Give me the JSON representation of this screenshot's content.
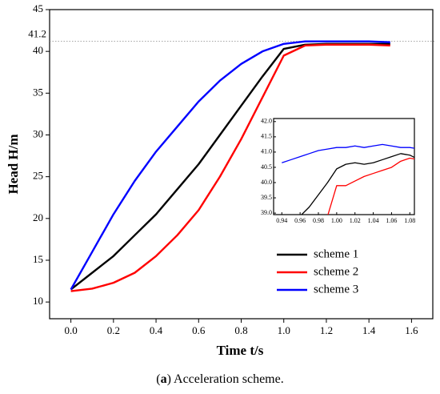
{
  "chart_data": [
    {
      "type": "line",
      "xlabel": "Time t/s",
      "ylabel": "Head H/m",
      "x": [
        0,
        0.1,
        0.2,
        0.3,
        0.4,
        0.5,
        0.6,
        0.7,
        0.8,
        0.9,
        1.0,
        1.1,
        1.2,
        1.3,
        1.4,
        1.5
      ],
      "series": [
        {
          "name": "scheme 1",
          "color": "#000000",
          "values": [
            11.5,
            13.5,
            15.5,
            18,
            20.5,
            23.5,
            26.5,
            30,
            33.5,
            37,
            40.3,
            40.8,
            40.9,
            40.9,
            40.9,
            40.9
          ]
        },
        {
          "name": "scheme 2",
          "color": "#ff0000",
          "values": [
            11.3,
            11.6,
            12.3,
            13.5,
            15.5,
            18,
            21,
            25,
            29.5,
            34.5,
            39.5,
            40.7,
            40.8,
            40.8,
            40.8,
            40.7
          ]
        },
        {
          "name": "scheme 3",
          "color": "#0000ff",
          "values": [
            11.5,
            16,
            20.5,
            24.5,
            28,
            31,
            34,
            36.5,
            38.5,
            40,
            40.9,
            41.2,
            41.2,
            41.2,
            41.2,
            41.1
          ]
        }
      ],
      "xlim": [
        -0.1,
        1.7
      ],
      "xticks": [
        {
          "value": 0,
          "label": "0.0"
        },
        0.2,
        0.4,
        0.6,
        0.8,
        {
          "value": 1,
          "label": "1.0"
        },
        1.2,
        1.4,
        1.6
      ],
      "ylim": [
        8,
        45
      ],
      "yticks": [
        10,
        15,
        20,
        25,
        30,
        35,
        40,
        45
      ],
      "reference_line": {
        "value": 41.2,
        "label": "41.2"
      },
      "legend": "lower right"
    },
    {
      "type": "line",
      "x": [
        0.94,
        0.95,
        0.96,
        0.97,
        0.98,
        0.99,
        1.0,
        1.01,
        1.02,
        1.03,
        1.04,
        1.05,
        1.06,
        1.07,
        1.08,
        1.09
      ],
      "series": [
        {
          "color": "#000000",
          "values": [
            null,
            null,
            38.9,
            39.2,
            39.6,
            40.0,
            40.45,
            40.6,
            40.65,
            40.6,
            40.65,
            40.75,
            40.85,
            40.95,
            40.9,
            40.75
          ]
        },
        {
          "color": "#ff0000",
          "values": [
            null,
            null,
            null,
            null,
            null,
            38.9,
            39.9,
            39.9,
            40.05,
            40.2,
            40.3,
            40.4,
            40.5,
            40.7,
            40.8,
            40.75
          ]
        },
        {
          "color": "#0000ff",
          "values": [
            40.65,
            40.75,
            40.85,
            40.95,
            41.05,
            41.1,
            41.15,
            41.15,
            41.2,
            41.15,
            41.2,
            41.25,
            41.2,
            41.15,
            41.15,
            41.1
          ]
        }
      ],
      "xlim": [
        0.931,
        1.085
      ],
      "xticks": [
        0.94,
        0.96,
        0.98,
        {
          "value": 1,
          "label": "1.00"
        },
        1.02,
        1.04,
        1.06,
        1.08
      ],
      "ylim": [
        38.95,
        42.1
      ],
      "yticks": [
        {
          "value": 39,
          "label": "39.0"
        },
        39.5,
        {
          "value": 40,
          "label": "40.0"
        },
        40.5,
        {
          "value": 41,
          "label": "41.0"
        },
        41.5,
        {
          "value": 42,
          "label": "42.0"
        }
      ]
    }
  ],
  "caption": [
    "(",
    "a",
    ") Acceleration scheme."
  ]
}
